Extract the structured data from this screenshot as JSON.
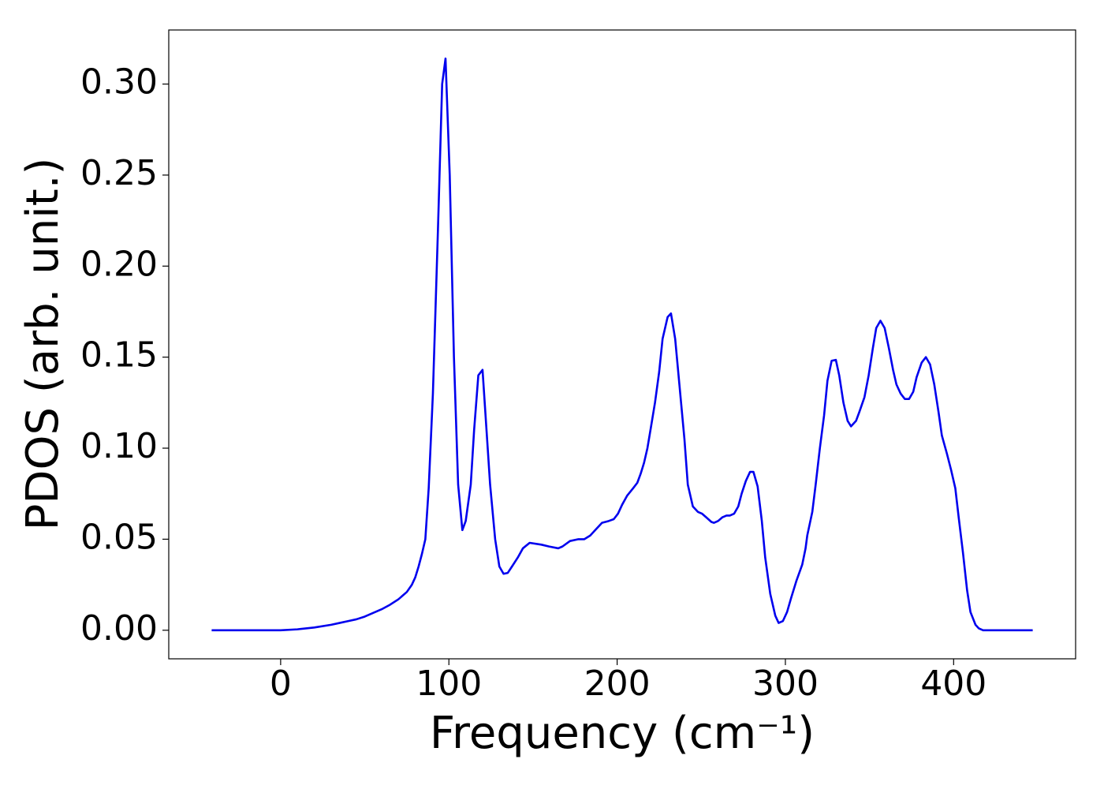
{
  "chart_data": {
    "type": "line",
    "xlabel": "Frequency (cm⁻¹)",
    "ylabel": "PDOS (arb. unit.)",
    "xlim": [
      -66.5,
      472.5
    ],
    "ylim": [
      -0.0157,
      0.3297
    ],
    "xticks": [
      0,
      100,
      200,
      300,
      400
    ],
    "yticks": [
      {
        "value": 0,
        "label": "0.00"
      },
      {
        "value": 0.05,
        "label": "0.05"
      },
      {
        "value": 0.1,
        "label": "0.10"
      },
      {
        "value": 0.15,
        "label": "0.15"
      },
      {
        "value": 0.2,
        "label": "0.20"
      },
      {
        "value": 0.25,
        "label": "0.25"
      },
      {
        "value": 0.3,
        "label": "0.30"
      }
    ],
    "grid": false,
    "x": [
      -41,
      0,
      10,
      20,
      30,
      35,
      40,
      45,
      50,
      55,
      60,
      65,
      70,
      75,
      78,
      80,
      82,
      84,
      86,
      88,
      90.5,
      93.5,
      96,
      98,
      100.5,
      103,
      105.5,
      108,
      110,
      113,
      115,
      117.5,
      120,
      122,
      124.5,
      127.5,
      130,
      132.5,
      135,
      137.5,
      141,
      144,
      148,
      155,
      159.5,
      165,
      167.5,
      172,
      177,
      180.5,
      184,
      188,
      191,
      195,
      198,
      200.5,
      203,
      206,
      209.5,
      212,
      214,
      216,
      218,
      220,
      222.5,
      225,
      227,
      230,
      232,
      234.5,
      237,
      240,
      242,
      245,
      248,
      250.5,
      253,
      256,
      257.5,
      260,
      262.5,
      265,
      267,
      269.5,
      272,
      274,
      276.5,
      279,
      281,
      283.5,
      286,
      288,
      291,
      294,
      296,
      298.5,
      301,
      303.5,
      306.5,
      310,
      312,
      313,
      316,
      318,
      320.5,
      323,
      325,
      327.5,
      330,
      332,
      334.5,
      337,
      339,
      342,
      344,
      347,
      349.5,
      352,
      354,
      356.5,
      359,
      361.5,
      364,
      366,
      368.5,
      371,
      373.5,
      376,
      378,
      381,
      383.5,
      386,
      388.5,
      391,
      393,
      396,
      398.5,
      401,
      403,
      405.5,
      408,
      410,
      413,
      415,
      417.5,
      447
    ],
    "series": [
      {
        "name": "PDOS",
        "color": "#0000ee",
        "values": [
          0,
          0,
          0.0005,
          0.0015,
          0.003,
          0.004,
          0.005,
          0.006,
          0.0075,
          0.0095,
          0.0115,
          0.014,
          0.017,
          0.021,
          0.025,
          0.029,
          0.035,
          0.042,
          0.05,
          0.078,
          0.13,
          0.22,
          0.3,
          0.314,
          0.25,
          0.15,
          0.08,
          0.055,
          0.06,
          0.08,
          0.11,
          0.14,
          0.143,
          0.115,
          0.08,
          0.05,
          0.035,
          0.031,
          0.0315,
          0.035,
          0.04,
          0.045,
          0.048,
          0.047,
          0.046,
          0.045,
          0.046,
          0.049,
          0.05,
          0.05,
          0.052,
          0.056,
          0.059,
          0.06,
          0.061,
          0.064,
          0.069,
          0.074,
          0.078,
          0.081,
          0.086,
          0.092,
          0.1,
          0.111,
          0.125,
          0.142,
          0.16,
          0.172,
          0.174,
          0.16,
          0.135,
          0.105,
          0.08,
          0.068,
          0.065,
          0.064,
          0.062,
          0.0595,
          0.059,
          0.06,
          0.062,
          0.063,
          0.063,
          0.064,
          0.068,
          0.075,
          0.082,
          0.087,
          0.087,
          0.079,
          0.06,
          0.04,
          0.02,
          0.008,
          0.004,
          0.005,
          0.01,
          0.018,
          0.027,
          0.036,
          0.045,
          0.052,
          0.065,
          0.08,
          0.1,
          0.118,
          0.137,
          0.148,
          0.1485,
          0.14,
          0.125,
          0.115,
          0.112,
          0.115,
          0.12,
          0.128,
          0.14,
          0.155,
          0.166,
          0.17,
          0.166,
          0.155,
          0.143,
          0.135,
          0.13,
          0.127,
          0.127,
          0.131,
          0.139,
          0.147,
          0.15,
          0.146,
          0.135,
          0.12,
          0.107,
          0.097,
          0.088,
          0.078,
          0.062,
          0.043,
          0.022,
          0.01,
          0.003,
          0.001,
          0,
          0
        ]
      }
    ]
  }
}
